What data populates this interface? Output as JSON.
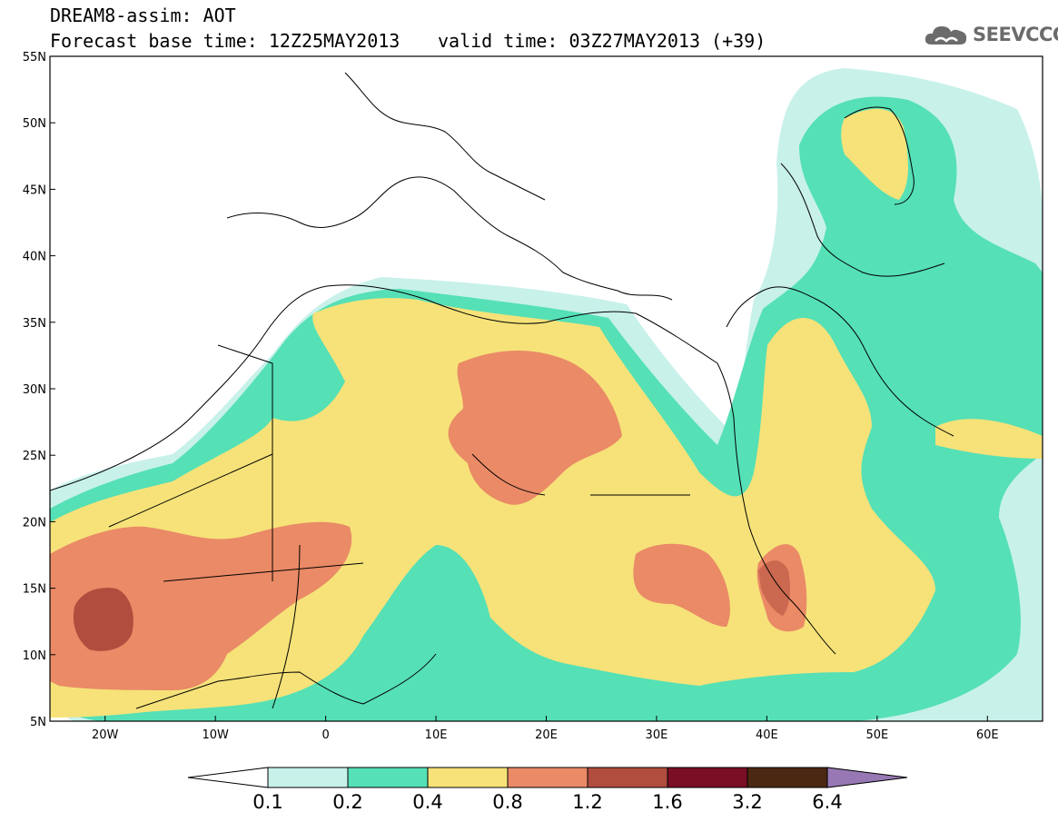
{
  "header": {
    "title_line1": "DREAM8-assim: AOT",
    "title_line2": "Forecast base time: 12Z25MAY2013",
    "valid_time": "valid time: 03Z27MAY2013 (+39)",
    "logo_text": "SEEVCCC"
  },
  "map": {
    "lat_labels": [
      "55N",
      "50N",
      "45N",
      "40N",
      "35N",
      "30N",
      "25N",
      "20N",
      "15N",
      "10N",
      "5N"
    ],
    "lon_labels": [
      "20W",
      "10W",
      "0",
      "10E",
      "20E",
      "30E",
      "40E",
      "50E",
      "60E"
    ],
    "lat_range": [
      5,
      55
    ],
    "lon_range": [
      -25,
      65
    ]
  },
  "colorbar": {
    "levels": [
      "0.1",
      "0.2",
      "0.4",
      "0.8",
      "1.2",
      "1.6",
      "3.2",
      "6.4"
    ],
    "colors": [
      "#c8f1ea",
      "#55e0b6",
      "#f6e279",
      "#ea8a66",
      "#b14d3e",
      "#7a0e24",
      "#4a2812"
    ],
    "under_color": "#ffffff",
    "over_color": "#9778b4"
  }
}
